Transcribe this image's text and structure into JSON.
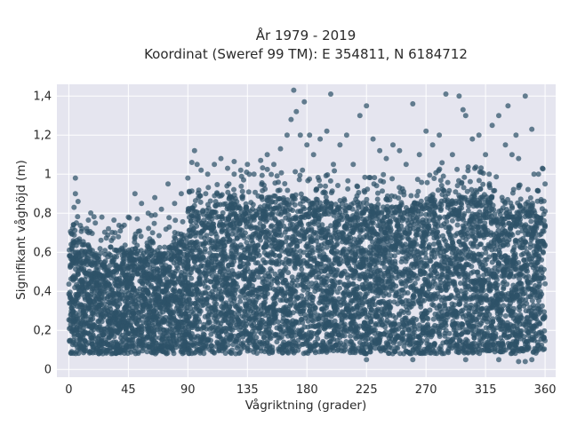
{
  "chart_data": {
    "type": "scatter",
    "title": "År 1979 - 2019",
    "subtitle": "Koordinat (Sweref 99 TM): E 354811, N 6184712",
    "xlabel": "Vågriktning (grader)",
    "ylabel": "Signifikant våghöjd (m)",
    "xlim": [
      -9,
      368
    ],
    "ylim": [
      -0.04,
      1.46
    ],
    "xticks": [
      0,
      45,
      90,
      135,
      180,
      225,
      270,
      315,
      360
    ],
    "xtick_labels": [
      "0",
      "45",
      "90",
      "135",
      "180",
      "225",
      "270",
      "315",
      "360"
    ],
    "yticks": [
      0,
      0.2,
      0.4,
      0.6,
      0.8,
      1.0,
      1.2,
      1.4
    ],
    "ytick_labels": [
      "0",
      "0,2",
      "0,4",
      "0,6",
      "0,8",
      "1",
      "1,2",
      "1,4"
    ],
    "grid": true,
    "background": "#e5e5ef",
    "marker_color": "#2e5268",
    "bulk_density": [
      {
        "x_range": [
          0,
          5
        ],
        "y_range": [
          0.08,
          0.65
        ]
      },
      {
        "x_range": [
          5,
          20
        ],
        "y_range": [
          0.08,
          0.6
        ]
      },
      {
        "x_range": [
          20,
          45
        ],
        "y_range": [
          0.08,
          0.55
        ]
      },
      {
        "x_range": [
          45,
          75
        ],
        "y_range": [
          0.08,
          0.58
        ]
      },
      {
        "x_range": [
          75,
          90
        ],
        "y_range": [
          0.08,
          0.62
        ]
      },
      {
        "x_range": [
          90,
          120
        ],
        "y_range": [
          0.08,
          0.78
        ]
      },
      {
        "x_range": [
          120,
          200
        ],
        "y_range": [
          0.08,
          0.82
        ]
      },
      {
        "x_range": [
          200,
          270
        ],
        "y_range": [
          0.08,
          0.8
        ]
      },
      {
        "x_range": [
          270,
          320
        ],
        "y_range": [
          0.08,
          0.85
        ]
      },
      {
        "x_range": [
          320,
          360
        ],
        "y_range": [
          0.08,
          0.78
        ]
      }
    ],
    "points": [
      [
        5,
        0.98
      ],
      [
        5,
        0.9
      ],
      [
        4,
        0.83
      ],
      [
        7,
        0.86
      ],
      [
        10,
        0.72
      ],
      [
        15,
        0.7
      ],
      [
        20,
        0.75
      ],
      [
        25,
        0.78
      ],
      [
        30,
        0.72
      ],
      [
        35,
        0.7
      ],
      [
        40,
        0.73
      ],
      [
        45,
        0.78
      ],
      [
        50,
        0.9
      ],
      [
        55,
        0.85
      ],
      [
        60,
        0.8
      ],
      [
        65,
        0.88
      ],
      [
        70,
        0.82
      ],
      [
        75,
        0.95
      ],
      [
        80,
        0.85
      ],
      [
        85,
        0.9
      ],
      [
        90,
        0.98
      ],
      [
        93,
        1.06
      ],
      [
        95,
        1.12
      ],
      [
        97,
        1.05
      ],
      [
        100,
        1.02
      ],
      [
        105,
        1.0
      ],
      [
        110,
        1.05
      ],
      [
        115,
        1.08
      ],
      [
        120,
        1.03
      ],
      [
        125,
        1.0
      ],
      [
        130,
        1.02
      ],
      [
        135,
        1.05
      ],
      [
        140,
        1.0
      ],
      [
        145,
        1.07
      ],
      [
        150,
        1.1
      ],
      [
        155,
        1.05
      ],
      [
        160,
        1.13
      ],
      [
        165,
        1.2
      ],
      [
        168,
        1.28
      ],
      [
        170,
        1.43
      ],
      [
        172,
        1.32
      ],
      [
        175,
        1.2
      ],
      [
        178,
        1.37
      ],
      [
        180,
        1.15
      ],
      [
        182,
        1.2
      ],
      [
        185,
        1.1
      ],
      [
        190,
        1.18
      ],
      [
        195,
        1.22
      ],
      [
        198,
        1.41
      ],
      [
        200,
        1.05
      ],
      [
        205,
        1.15
      ],
      [
        210,
        1.2
      ],
      [
        215,
        1.05
      ],
      [
        220,
        1.3
      ],
      [
        225,
        1.35
      ],
      [
        230,
        1.18
      ],
      [
        235,
        1.12
      ],
      [
        240,
        1.08
      ],
      [
        245,
        1.15
      ],
      [
        250,
        1.12
      ],
      [
        255,
        1.05
      ],
      [
        260,
        1.36
      ],
      [
        265,
        1.1
      ],
      [
        270,
        1.22
      ],
      [
        275,
        1.15
      ],
      [
        280,
        1.2
      ],
      [
        285,
        1.41
      ],
      [
        290,
        1.1
      ],
      [
        295,
        1.4
      ],
      [
        298,
        1.33
      ],
      [
        300,
        1.3
      ],
      [
        305,
        1.18
      ],
      [
        310,
        1.2
      ],
      [
        315,
        1.1
      ],
      [
        320,
        1.25
      ],
      [
        325,
        1.3
      ],
      [
        330,
        1.15
      ],
      [
        332,
        1.35
      ],
      [
        335,
        1.1
      ],
      [
        338,
        1.2
      ],
      [
        340,
        1.08
      ],
      [
        345,
        1.4
      ],
      [
        350,
        1.23
      ],
      [
        355,
        1.0
      ],
      [
        358,
        1.03
      ],
      [
        360,
        0.95
      ],
      [
        300,
        0.05
      ],
      [
        325,
        0.05
      ],
      [
        340,
        0.04
      ],
      [
        345,
        0.04
      ],
      [
        350,
        0.05
      ],
      [
        225,
        0.05
      ],
      [
        260,
        0.05
      ]
    ]
  }
}
